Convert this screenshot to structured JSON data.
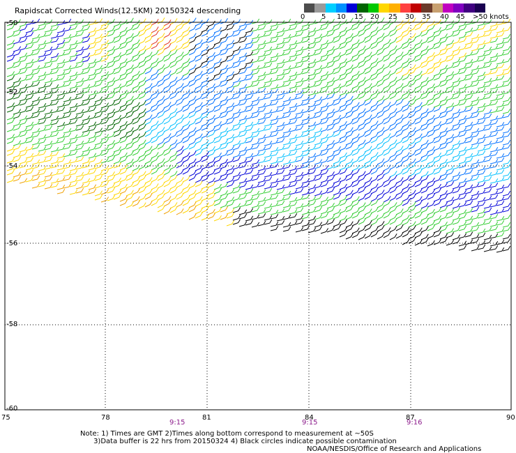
{
  "title": "Rapidscat Corrected Winds(12.5KM) 20150324 descending",
  "legend": {
    "labels": [
      "0",
      "5",
      "10",
      "15",
      "20",
      "25",
      "30",
      "35",
      "40",
      "45",
      ">50 knots"
    ],
    "colors": [
      "#4d4d4d",
      "#9a9a9a",
      "#00cfff",
      "#0090ff",
      "#0000d8",
      "#006400",
      "#00c800",
      "#ffd700",
      "#ffb000",
      "#ff4040",
      "#c00000",
      "#6b3a2a",
      "#c8a070",
      "#c000c0",
      "#8000c0",
      "#400080",
      "#1a0050"
    ]
  },
  "map": {
    "lon_ticks": [
      "75",
      "78",
      "81",
      "84",
      "87",
      "90"
    ],
    "lat_ticks": [
      "-50",
      "-52",
      "-54",
      "-56",
      "-58",
      "-60"
    ],
    "times": [
      "9:15",
      "9:15",
      "9:16"
    ]
  },
  "notes": {
    "line1": "Note: 1) Times are GMT 2)Times along bottom correspond to measurement at ~50S",
    "line2": "      3)Data buffer is 22 hrs from 20150324 4) Black circles indicate possible contamination"
  },
  "credit": "NOAA/NESDIS/Office of Research and Applications",
  "wind_colors": {
    "yellow": "#ffd700",
    "orange": "#f0a000",
    "light_green": "#32cd32",
    "dark_green": "#006400",
    "blue": "#0000d8",
    "mid_blue": "#0070ff",
    "light_blue": "#00bfff",
    "black": "#000000",
    "red": "#e03020"
  }
}
